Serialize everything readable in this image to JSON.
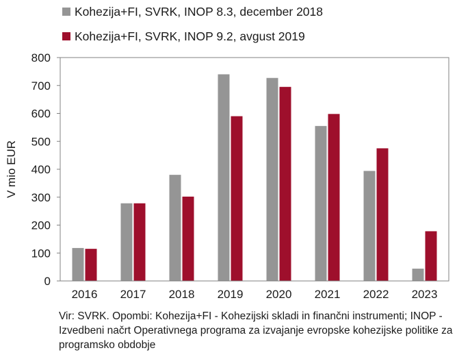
{
  "chart_data": {
    "type": "bar",
    "categories": [
      "2016",
      "2017",
      "2018",
      "2019",
      "2020",
      "2021",
      "2022",
      "2023"
    ],
    "series": [
      {
        "name": "Kohezija+FI, SVRK, INOP 8.3, december 2018",
        "color": "#959595",
        "values": [
          118,
          278,
          380,
          740,
          727,
          555,
          394,
          44
        ]
      },
      {
        "name": "Kohezija+FI, SVRK, INOP 9.2, avgust 2019",
        "color": "#9e0f2c",
        "values": [
          115,
          278,
          302,
          590,
          695,
          598,
          475,
          178
        ]
      }
    ],
    "ylabel": "V mio EUR",
    "ylim": [
      0,
      800
    ],
    "yticks": [
      0,
      100,
      200,
      300,
      400,
      500,
      600,
      700,
      800
    ],
    "grid": false,
    "legend": "top-left"
  },
  "note": "Vir:  SVRK. Opombi:  Kohezija+FI - Kohezijski skladi in finančni instrumenti; INOP -  Izvedbeni načrt Operativnega programa za izvajanje evropske kohezijske politike za programsko obdobje"
}
